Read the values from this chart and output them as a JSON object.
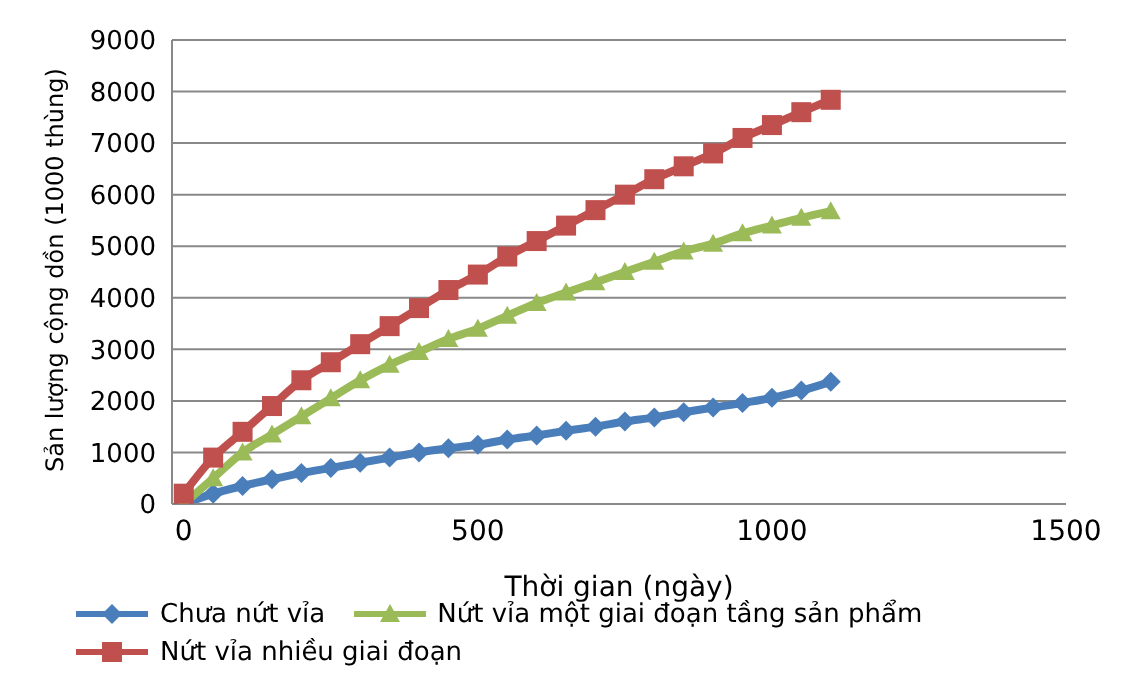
{
  "chart_data": {
    "type": "line",
    "xlabel": "Thời gian (ngày)",
    "ylabel": "Sản lượng cộng dồn (1000 thùng)",
    "xlim": [
      -20,
      1500
    ],
    "xticks": [
      0,
      500,
      1000,
      1500
    ],
    "ylim": [
      0,
      9000
    ],
    "yticks": [
      0,
      1000,
      2000,
      3000,
      4000,
      5000,
      6000,
      7000,
      8000,
      9000
    ],
    "grid": "y",
    "legend": "bottom",
    "line_style": "solid",
    "x": [
      0,
      50,
      100,
      150,
      200,
      250,
      300,
      350,
      400,
      450,
      500,
      550,
      600,
      650,
      700,
      750,
      800,
      850,
      900,
      950,
      1000,
      1050,
      1100
    ],
    "series": [
      {
        "name": "Chưa nứt vỉa",
        "color": "#4a7ebb",
        "marker": "diamond",
        "values": [
          0,
          200,
          350,
          480,
          600,
          700,
          800,
          900,
          1000,
          1080,
          1150,
          1250,
          1330,
          1420,
          1500,
          1600,
          1680,
          1780,
          1870,
          1960,
          2060,
          2200,
          2370
        ]
      },
      {
        "name": "Nứt vỉa một giai đoạn tầng sản phẩm",
        "color": "#9bbb59",
        "marker": "triangle",
        "values": [
          0,
          500,
          1000,
          1350,
          1700,
          2050,
          2400,
          2700,
          2950,
          3200,
          3400,
          3650,
          3900,
          4100,
          4300,
          4500,
          4700,
          4900,
          5050,
          5250,
          5400,
          5550,
          5680
        ]
      },
      {
        "name": "Nứt vỉa nhiều giai đoạn",
        "color": "#c0504d",
        "marker": "square",
        "values": [
          200,
          900,
          1400,
          1900,
          2400,
          2750,
          3100,
          3450,
          3800,
          4150,
          4450,
          4800,
          5100,
          5400,
          5700,
          6000,
          6300,
          6550,
          6800,
          7100,
          7350,
          7600,
          7840
        ]
      }
    ]
  }
}
